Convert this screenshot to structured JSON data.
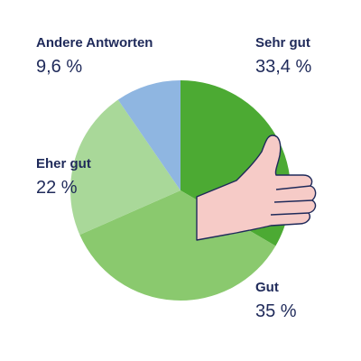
{
  "chart_data": {
    "type": "pie",
    "categories": [
      "Sehr gut",
      "Gut",
      "Eher gut",
      "Andere Antworten"
    ],
    "values": [
      33.4,
      35,
      22,
      9.6
    ],
    "value_labels": [
      "33,4 %",
      "35 %",
      "22 %",
      "9,6 %"
    ],
    "colors": [
      "#4caa33",
      "#8ac96e",
      "#a9d899",
      "#8fb6e1"
    ]
  }
}
